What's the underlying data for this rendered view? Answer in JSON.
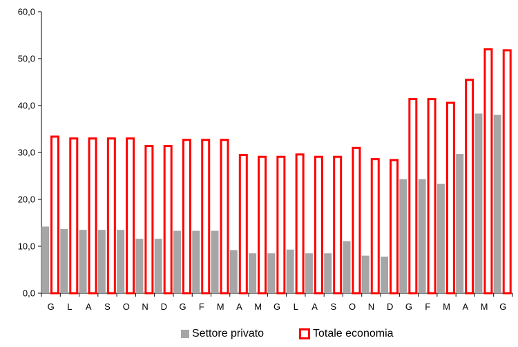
{
  "chart_data": {
    "type": "bar",
    "categories": [
      "G",
      "L",
      "A",
      "S",
      "O",
      "N",
      "D",
      "G",
      "F",
      "M",
      "A",
      "M",
      "G",
      "L",
      "A",
      "S",
      "O",
      "N",
      "D",
      "G",
      "F",
      "M",
      "A",
      "M",
      "G"
    ],
    "series": [
      {
        "name": "Settore privato",
        "style": "filled",
        "color": "#a6a6a6",
        "values": [
          14.2,
          13.7,
          13.5,
          13.5,
          13.5,
          11.6,
          11.6,
          13.3,
          13.3,
          13.3,
          9.2,
          8.5,
          8.5,
          9.3,
          8.5,
          8.5,
          11.1,
          8.0,
          7.8,
          24.3,
          24.3,
          23.3,
          29.7,
          38.3,
          38.0
        ]
      },
      {
        "name": "Totale economia",
        "style": "outline",
        "color": "#ff0000",
        "values": [
          33.6,
          33.2,
          33.2,
          33.2,
          33.2,
          31.6,
          31.6,
          32.9,
          32.9,
          32.9,
          29.7,
          29.3,
          29.3,
          29.8,
          29.3,
          29.3,
          31.2,
          28.8,
          28.6,
          41.6,
          41.6,
          40.8,
          45.7,
          52.2,
          52.0
        ]
      }
    ],
    "ylim": [
      0,
      60
    ],
    "yticks": [
      "0,0",
      "10,0",
      "20,0",
      "30,0",
      "40,0",
      "50,0",
      "60,0"
    ],
    "grid": false,
    "legend_position": "bottom"
  }
}
